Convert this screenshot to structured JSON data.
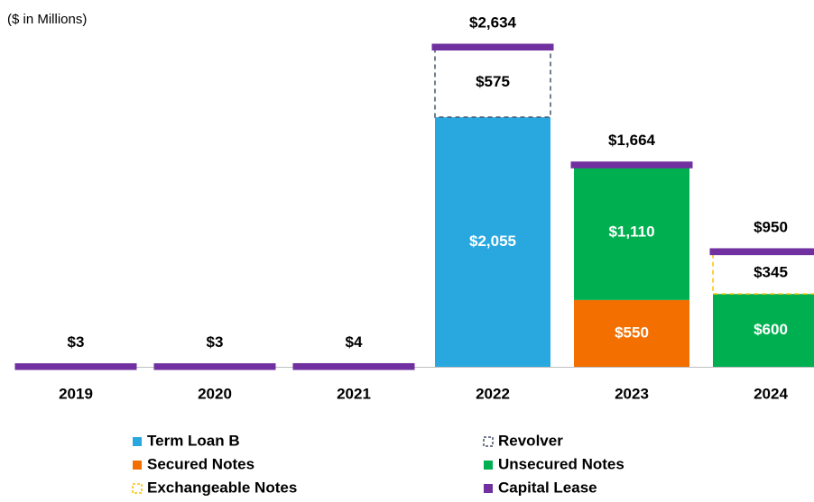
{
  "chart_data": {
    "type": "stacked_bar",
    "subtitle": "($ in Millions)",
    "categories": [
      "2019",
      "2020",
      "2021",
      "2022",
      "2023",
      "2024"
    ],
    "series": [
      {
        "name": "Term Loan B",
        "color": "#29a8e0",
        "values": [
          null,
          null,
          null,
          2055,
          null,
          null
        ],
        "value_labels": [
          null,
          null,
          null,
          "$2,055",
          null,
          null
        ]
      },
      {
        "name": "Secured Notes",
        "color": "#f26f00",
        "values": [
          null,
          null,
          null,
          null,
          550,
          null
        ],
        "value_labels": [
          null,
          null,
          null,
          null,
          "$550",
          null
        ]
      },
      {
        "name": "Unsecured Notes",
        "color": "#00b050",
        "values": [
          null,
          null,
          null,
          null,
          1110,
          600
        ],
        "value_labels": [
          null,
          null,
          null,
          null,
          "$1,110",
          "$600"
        ]
      },
      {
        "name": "Revolver",
        "color": "#44546a",
        "dashed": true,
        "values": [
          null,
          null,
          null,
          575,
          null,
          null
        ],
        "value_labels": [
          null,
          null,
          null,
          "$575",
          null,
          null
        ]
      },
      {
        "name": "Exchangeable Notes",
        "color": "#f5c400",
        "dashed": true,
        "values": [
          null,
          null,
          null,
          null,
          null,
          345
        ],
        "value_labels": [
          null,
          null,
          null,
          null,
          null,
          "$345"
        ]
      },
      {
        "name": "Capital Lease",
        "color": "#7030a0",
        "values": [
          3,
          3,
          4,
          4,
          4,
          5
        ]
      }
    ],
    "totals": [
      3,
      3,
      4,
      2634,
      1664,
      950
    ],
    "total_labels": [
      "$3",
      "$3",
      "$4",
      "$2,634",
      "$1,664",
      "$950"
    ],
    "legend_order": [
      0,
      3,
      1,
      2,
      4,
      5
    ]
  }
}
